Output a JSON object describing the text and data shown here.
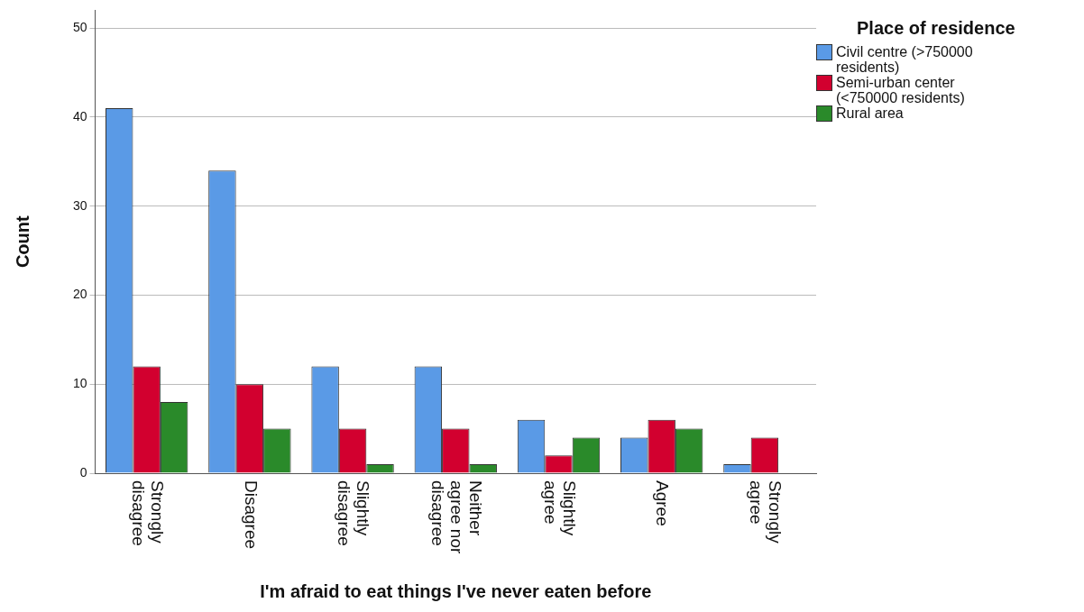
{
  "chart_data": {
    "type": "bar",
    "xlabel": "I'm afraid to eat things I've never eaten before",
    "ylabel": "Count",
    "legend_title": "Place of residence",
    "categories": [
      "Strongly disagree",
      "Disagree",
      "Slightly disagree",
      "Neither agree nor disagree",
      "Slightly agree",
      "Agree",
      "Strongly agree"
    ],
    "series": [
      {
        "name": "Civil centre (>750000 residents)",
        "color": "#5a9ae6",
        "values": [
          41,
          34,
          12,
          12,
          6,
          4,
          1
        ]
      },
      {
        "name": "Semi-urban center (<750000 residents)",
        "color": "#d2002f",
        "values": [
          12,
          10,
          5,
          5,
          2,
          6,
          4
        ]
      },
      {
        "name": "Rural area",
        "color": "#2a8a2a",
        "values": [
          8,
          5,
          1,
          1,
          4,
          5,
          0
        ]
      }
    ],
    "ylim": [
      0,
      52
    ],
    "yticks": [
      0,
      10,
      20,
      30,
      40,
      50
    ],
    "grid": "y",
    "legend": "top right"
  }
}
